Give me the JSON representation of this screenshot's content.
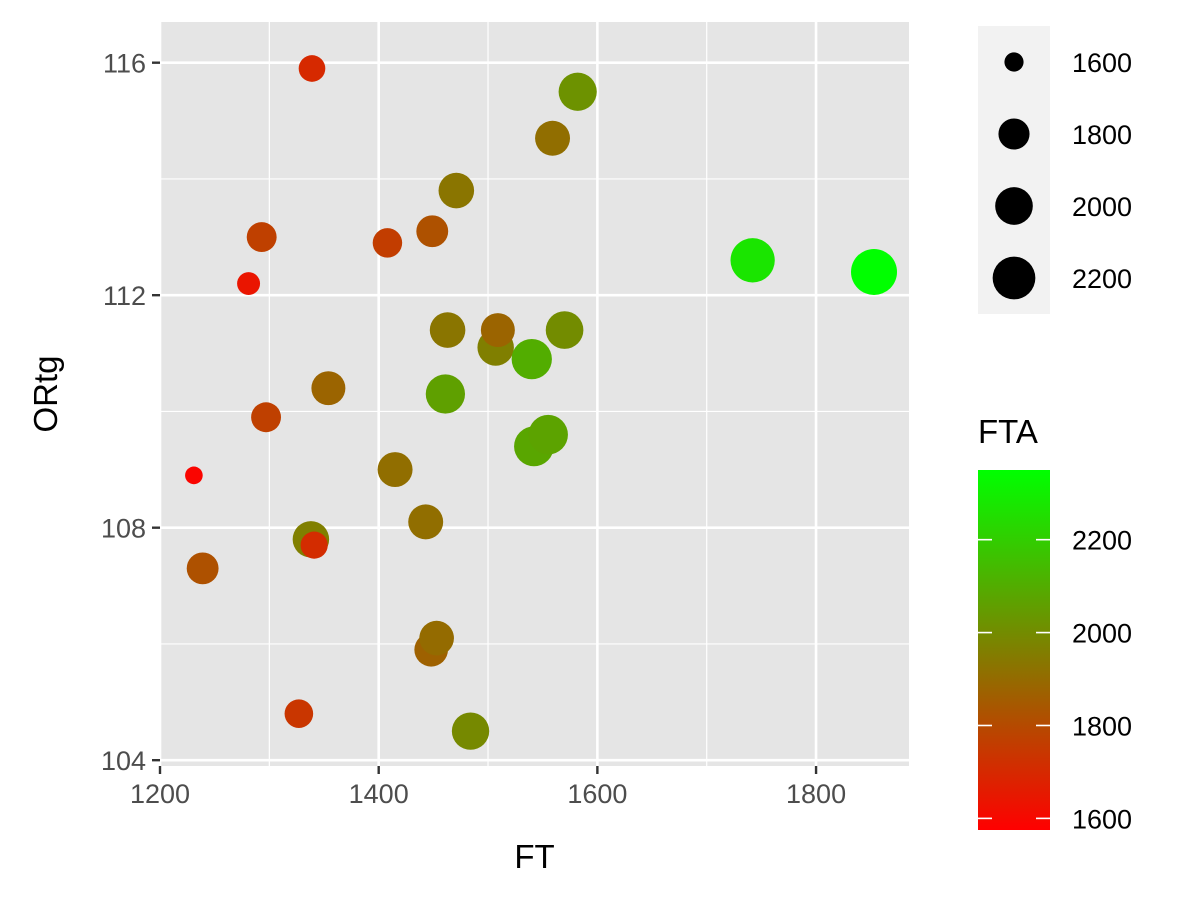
{
  "chart_data": {
    "type": "scatter",
    "xlabel": "FT",
    "ylabel": "ORtg",
    "xlim": [
      1200,
      1885
    ],
    "ylim": [
      103.9,
      116.7
    ],
    "x_ticks": [
      1200,
      1400,
      1600,
      1800
    ],
    "x_minor_ticks": [
      1300,
      1500,
      1700
    ],
    "y_ticks": [
      104,
      108,
      112,
      116
    ],
    "y_minor_ticks": [
      106,
      110,
      114
    ],
    "grid": true,
    "panel_background": "#e5e5e5",
    "size_legend": {
      "variable": "FTA",
      "title": "",
      "entries": [
        {
          "label": "1600",
          "value": 1600
        },
        {
          "label": "1800",
          "value": 1800
        },
        {
          "label": "2000",
          "value": 2000
        },
        {
          "label": "2200",
          "value": 2200
        }
      ]
    },
    "color_legend": {
      "title": "FTA",
      "range": [
        1575,
        2350
      ],
      "low_color": "#ff0000",
      "high_color": "#00ff00",
      "ticks": [
        {
          "label": "1600",
          "value": 1600
        },
        {
          "label": "1800",
          "value": 1800
        },
        {
          "label": "2000",
          "value": 2000
        },
        {
          "label": "2200",
          "value": 2200
        }
      ]
    },
    "points": [
      {
        "x": 1231,
        "y": 108.9,
        "fta": 1590
      },
      {
        "x": 1239,
        "y": 107.3,
        "fta": 1820
      },
      {
        "x": 1281,
        "y": 112.2,
        "fta": 1640
      },
      {
        "x": 1293,
        "y": 113.0,
        "fta": 1770
      },
      {
        "x": 1297,
        "y": 109.9,
        "fta": 1770
      },
      {
        "x": 1327,
        "y": 104.8,
        "fta": 1740
      },
      {
        "x": 1338,
        "y": 107.8,
        "fta": 1960
      },
      {
        "x": 1339,
        "y": 115.9,
        "fta": 1700
      },
      {
        "x": 1341,
        "y": 107.7,
        "fta": 1710
      },
      {
        "x": 1354,
        "y": 110.4,
        "fta": 1880
      },
      {
        "x": 1408,
        "y": 112.9,
        "fta": 1760
      },
      {
        "x": 1415,
        "y": 109.0,
        "fta": 1910
      },
      {
        "x": 1443,
        "y": 108.1,
        "fta": 1910
      },
      {
        "x": 1448,
        "y": 105.9,
        "fta": 1870
      },
      {
        "x": 1449,
        "y": 113.1,
        "fta": 1820
      },
      {
        "x": 1453,
        "y": 106.1,
        "fta": 1900
      },
      {
        "x": 1461,
        "y": 110.3,
        "fta": 2060
      },
      {
        "x": 1463,
        "y": 111.4,
        "fta": 1930
      },
      {
        "x": 1471,
        "y": 113.8,
        "fta": 1930
      },
      {
        "x": 1484,
        "y": 104.5,
        "fta": 1990
      },
      {
        "x": 1507,
        "y": 111.1,
        "fta": 1960
      },
      {
        "x": 1509,
        "y": 111.4,
        "fta": 1880
      },
      {
        "x": 1540,
        "y": 110.9,
        "fta": 2100
      },
      {
        "x": 1542,
        "y": 109.4,
        "fta": 2080
      },
      {
        "x": 1555,
        "y": 109.6,
        "fta": 2070
      },
      {
        "x": 1559,
        "y": 114.7,
        "fta": 1910
      },
      {
        "x": 1570,
        "y": 111.4,
        "fta": 2000
      },
      {
        "x": 1582,
        "y": 115.5,
        "fta": 2020
      },
      {
        "x": 1742,
        "y": 112.6,
        "fta": 2270
      },
      {
        "x": 1853,
        "y": 112.4,
        "fta": 2350
      }
    ]
  }
}
